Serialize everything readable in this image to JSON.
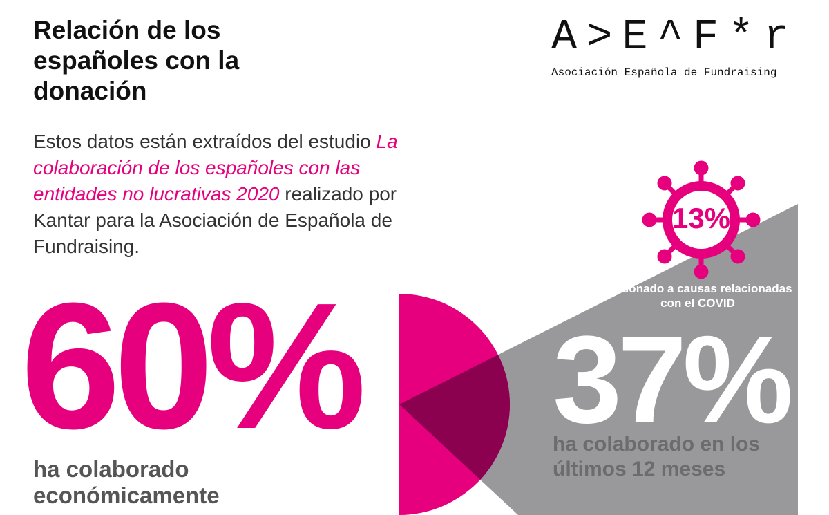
{
  "header": {
    "title": "Relación de los españoles con la donación",
    "logo": {
      "mark": "A>E^F*r",
      "name": "Asociación Española de Fundraising"
    }
  },
  "intro": {
    "lead": "Estos datos están extraídos del estudio",
    "study": "La colaboración de los españoles con las entidades no lucrativas 2020",
    "tail": "realizado por Kantar para la Asociación de Española de Fundraising."
  },
  "stats": [
    {
      "figure": "60%",
      "label": "ha colaborado económicamente"
    },
    {
      "figure": "37%",
      "label": "ha colaborado en los últimos 12 meses"
    },
    {
      "figure": "13%",
      "label": "Ha donado a causas relacionadas con el COVID"
    }
  ]
}
